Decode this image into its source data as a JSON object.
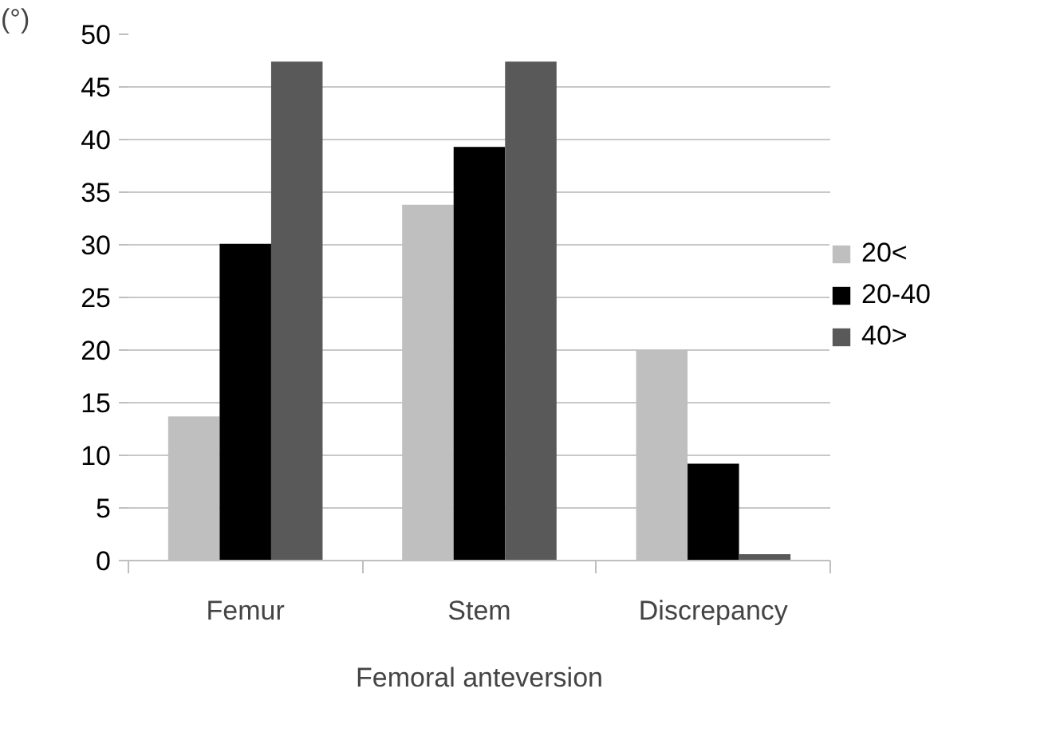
{
  "chart_data": {
    "type": "bar",
    "xlabel": "Femoral anteversion",
    "ylabel": "(°)",
    "categories": [
      "Femur",
      "Stem",
      "Discrepancy"
    ],
    "series": [
      {
        "name": "20<",
        "color": "#bfbfbf",
        "values": [
          13.7,
          33.8,
          20.0
        ]
      },
      {
        "name": "20-40",
        "color": "#000000",
        "values": [
          30.1,
          39.3,
          9.2
        ]
      },
      {
        "name": "40>",
        "color": "#595959",
        "values": [
          47.4,
          47.4,
          0.6
        ]
      }
    ],
    "ylim": [
      0,
      50
    ],
    "yticks": [
      0,
      5,
      10,
      15,
      20,
      25,
      30,
      35,
      40,
      45,
      50
    ],
    "grid": "y",
    "legend": "right"
  }
}
